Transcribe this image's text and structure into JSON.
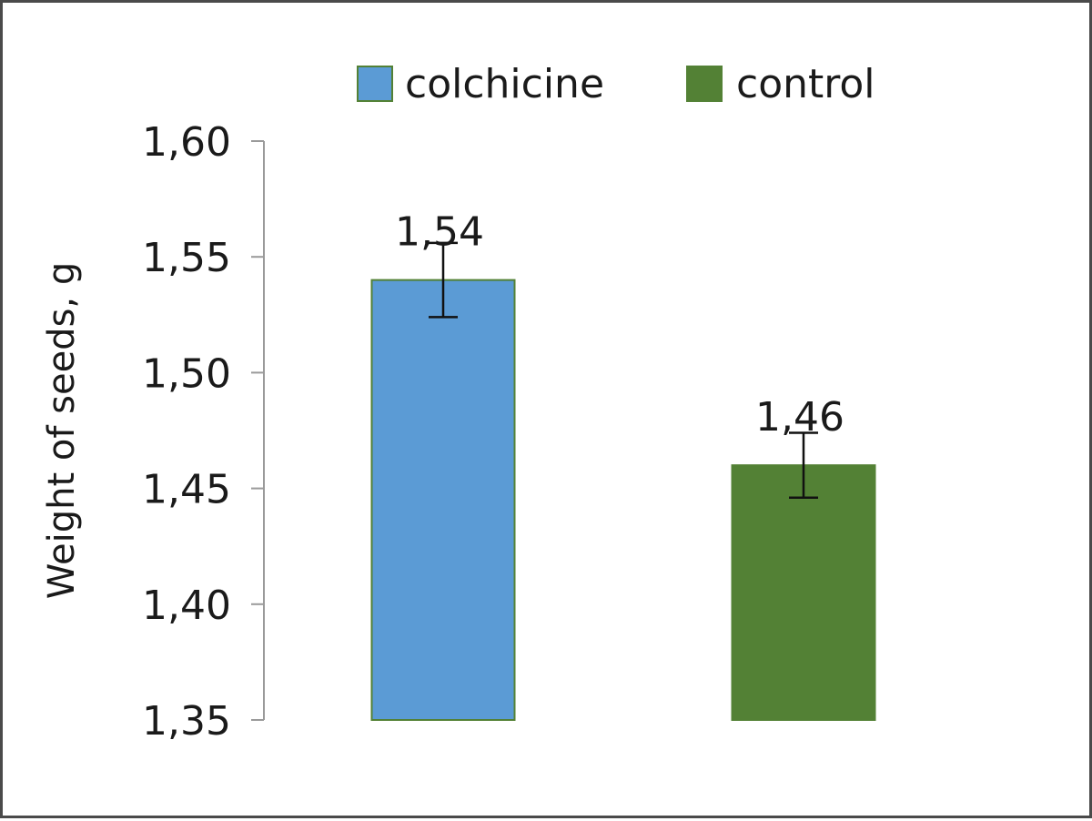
{
  "chart_data": {
    "type": "bar",
    "categories": [
      "colchicine",
      "control"
    ],
    "values": [
      1.54,
      1.46
    ],
    "value_labels": [
      "1,54",
      "1,46"
    ],
    "error_bars": [
      0.016,
      0.014
    ],
    "colors": [
      "#5b9bd5",
      "#538135"
    ],
    "bar_outline_color": "#538135",
    "title": "",
    "xlabel": "",
    "ylabel": "Weight of seeds, g",
    "ylim": [
      1.35,
      1.6
    ],
    "yticks": [
      1.35,
      1.4,
      1.45,
      1.5,
      1.55,
      1.6
    ],
    "ytick_labels": [
      "1,35",
      "1,40",
      "1,45",
      "1,50",
      "1,55",
      "1,60"
    ],
    "grid": false,
    "legend": {
      "position": "top",
      "entries": [
        "colchicine",
        "control"
      ]
    }
  }
}
